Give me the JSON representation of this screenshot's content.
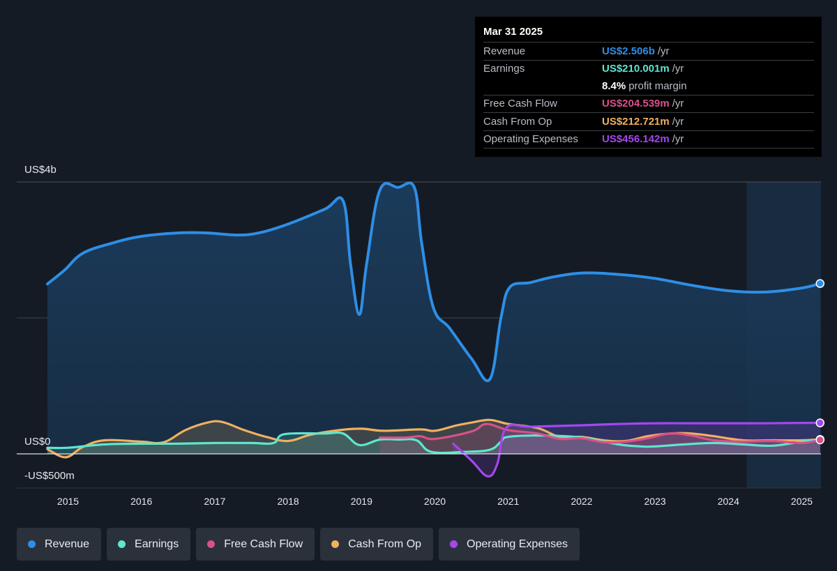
{
  "tooltip": {
    "date": "Mar 31 2025",
    "rows": [
      {
        "label": "Revenue",
        "value": "US$2.506b",
        "unit": "/yr",
        "color": "#2e8ee6"
      },
      {
        "label": "Earnings",
        "value": "US$210.001m",
        "unit": "/yr",
        "color": "#5ee6cf"
      },
      {
        "label": "",
        "value": "8.4%",
        "unit": "profit margin",
        "color": "#ffffff"
      },
      {
        "label": "Free Cash Flow",
        "value": "US$204.539m",
        "unit": "/yr",
        "color": "#d9508a"
      },
      {
        "label": "Cash From Op",
        "value": "US$212.721m",
        "unit": "/yr",
        "color": "#f0b060"
      },
      {
        "label": "Operating Expenses",
        "value": "US$456.142m",
        "unit": "/yr",
        "color": "#a347f0"
      }
    ]
  },
  "legend": [
    {
      "label": "Revenue",
      "color": "#2e8ee6"
    },
    {
      "label": "Earnings",
      "color": "#5ee6cf"
    },
    {
      "label": "Free Cash Flow",
      "color": "#d9508a"
    },
    {
      "label": "Cash From Op",
      "color": "#f0b060"
    },
    {
      "label": "Operating Expenses",
      "color": "#a347f0"
    }
  ],
  "chart_data": {
    "type": "line",
    "y_labels": [
      "US$4b",
      "US$0",
      "-US$500m"
    ],
    "x_ticks": [
      "2015",
      "2016",
      "2017",
      "2018",
      "2019",
      "2020",
      "2021",
      "2022",
      "2023",
      "2024",
      "2025"
    ],
    "ylim": [
      -500,
      4000
    ],
    "y_unit": "US$ millions",
    "forecast_shading_start": 2024.25,
    "series": [
      {
        "name": "Revenue",
        "color": "#2e8ee6",
        "points": [
          [
            2014.72,
            2500
          ],
          [
            2014.95,
            2700
          ],
          [
            2015.2,
            2950
          ],
          [
            2015.6,
            3100
          ],
          [
            2016.0,
            3200
          ],
          [
            2016.5,
            3250
          ],
          [
            2016.9,
            3250
          ],
          [
            2017.3,
            3220
          ],
          [
            2017.6,
            3250
          ],
          [
            2018.0,
            3380
          ],
          [
            2018.5,
            3600
          ],
          [
            2018.75,
            3720
          ],
          [
            2018.85,
            2800
          ],
          [
            2018.97,
            2050
          ],
          [
            2019.07,
            2800
          ],
          [
            2019.25,
            3880
          ],
          [
            2019.5,
            3920
          ],
          [
            2019.72,
            3920
          ],
          [
            2019.82,
            3100
          ],
          [
            2019.98,
            2150
          ],
          [
            2020.2,
            1850
          ],
          [
            2020.5,
            1400
          ],
          [
            2020.75,
            1100
          ],
          [
            2020.9,
            2000
          ],
          [
            2021.02,
            2450
          ],
          [
            2021.3,
            2520
          ],
          [
            2021.6,
            2600
          ],
          [
            2022.0,
            2660
          ],
          [
            2022.5,
            2640
          ],
          [
            2023.0,
            2580
          ],
          [
            2023.5,
            2480
          ],
          [
            2024.0,
            2400
          ],
          [
            2024.5,
            2380
          ],
          [
            2025.0,
            2440
          ],
          [
            2025.25,
            2506
          ]
        ]
      },
      {
        "name": "Earnings",
        "color": "#5ee6cf",
        "points": [
          [
            2014.72,
            90
          ],
          [
            2015.0,
            90
          ],
          [
            2015.5,
            140
          ],
          [
            2016.0,
            150
          ],
          [
            2016.5,
            150
          ],
          [
            2017.0,
            160
          ],
          [
            2017.5,
            160
          ],
          [
            2017.8,
            160
          ],
          [
            2017.95,
            290
          ],
          [
            2018.5,
            300
          ],
          [
            2018.75,
            300
          ],
          [
            2018.97,
            130
          ],
          [
            2019.25,
            210
          ],
          [
            2019.5,
            210
          ],
          [
            2019.75,
            200
          ],
          [
            2019.95,
            30
          ],
          [
            2020.4,
            30
          ],
          [
            2020.75,
            60
          ],
          [
            2020.9,
            180
          ],
          [
            2021.0,
            250
          ],
          [
            2021.5,
            270
          ],
          [
            2022.0,
            240
          ],
          [
            2022.5,
            140
          ],
          [
            2022.8,
            110
          ],
          [
            2023.0,
            110
          ],
          [
            2023.4,
            140
          ],
          [
            2023.8,
            160
          ],
          [
            2024.2,
            140
          ],
          [
            2024.6,
            120
          ],
          [
            2025.0,
            180
          ],
          [
            2025.25,
            210
          ]
        ]
      },
      {
        "name": "Free Cash Flow",
        "color": "#d9508a",
        "points": [
          [
            2019.25,
            240
          ],
          [
            2019.6,
            240
          ],
          [
            2019.8,
            260
          ],
          [
            2020.0,
            220
          ],
          [
            2020.5,
            330
          ],
          [
            2020.7,
            440
          ],
          [
            2021.0,
            350
          ],
          [
            2021.4,
            300
          ],
          [
            2021.7,
            220
          ],
          [
            2022.0,
            230
          ],
          [
            2022.3,
            170
          ],
          [
            2022.6,
            180
          ],
          [
            2022.9,
            230
          ],
          [
            2023.2,
            300
          ],
          [
            2023.5,
            270
          ],
          [
            2023.8,
            200
          ],
          [
            2024.2,
            180
          ],
          [
            2024.6,
            190
          ],
          [
            2025.0,
            160
          ],
          [
            2025.25,
            205
          ]
        ]
      },
      {
        "name": "Cash From Op",
        "color": "#f0b060",
        "points": [
          [
            2014.72,
            70
          ],
          [
            2014.97,
            -50
          ],
          [
            2015.2,
            100
          ],
          [
            2015.5,
            200
          ],
          [
            2016.0,
            180
          ],
          [
            2016.3,
            170
          ],
          [
            2016.6,
            350
          ],
          [
            2016.9,
            460
          ],
          [
            2017.1,
            470
          ],
          [
            2017.4,
            350
          ],
          [
            2017.7,
            250
          ],
          [
            2018.0,
            190
          ],
          [
            2018.3,
            280
          ],
          [
            2018.7,
            350
          ],
          [
            2019.0,
            370
          ],
          [
            2019.3,
            340
          ],
          [
            2019.8,
            360
          ],
          [
            2020.0,
            340
          ],
          [
            2020.3,
            420
          ],
          [
            2020.5,
            460
          ],
          [
            2020.75,
            500
          ],
          [
            2021.0,
            440
          ],
          [
            2021.4,
            380
          ],
          [
            2021.7,
            250
          ],
          [
            2022.0,
            250
          ],
          [
            2022.3,
            200
          ],
          [
            2022.6,
            190
          ],
          [
            2022.9,
            260
          ],
          [
            2023.2,
            300
          ],
          [
            2023.5,
            300
          ],
          [
            2023.8,
            260
          ],
          [
            2024.2,
            200
          ],
          [
            2024.6,
            200
          ],
          [
            2025.0,
            200
          ],
          [
            2025.25,
            213
          ]
        ]
      },
      {
        "name": "Operating Expenses",
        "color": "#a347f0",
        "points": [
          [
            2020.25,
            150
          ],
          [
            2020.5,
            -100
          ],
          [
            2020.72,
            -330
          ],
          [
            2020.85,
            -150
          ],
          [
            2020.97,
            380
          ],
          [
            2021.3,
            400
          ],
          [
            2022.0,
            420
          ],
          [
            2022.5,
            440
          ],
          [
            2023.0,
            450
          ],
          [
            2023.5,
            450
          ],
          [
            2024.0,
            450
          ],
          [
            2024.5,
            450
          ],
          [
            2025.0,
            455
          ],
          [
            2025.25,
            456
          ]
        ]
      }
    ]
  }
}
